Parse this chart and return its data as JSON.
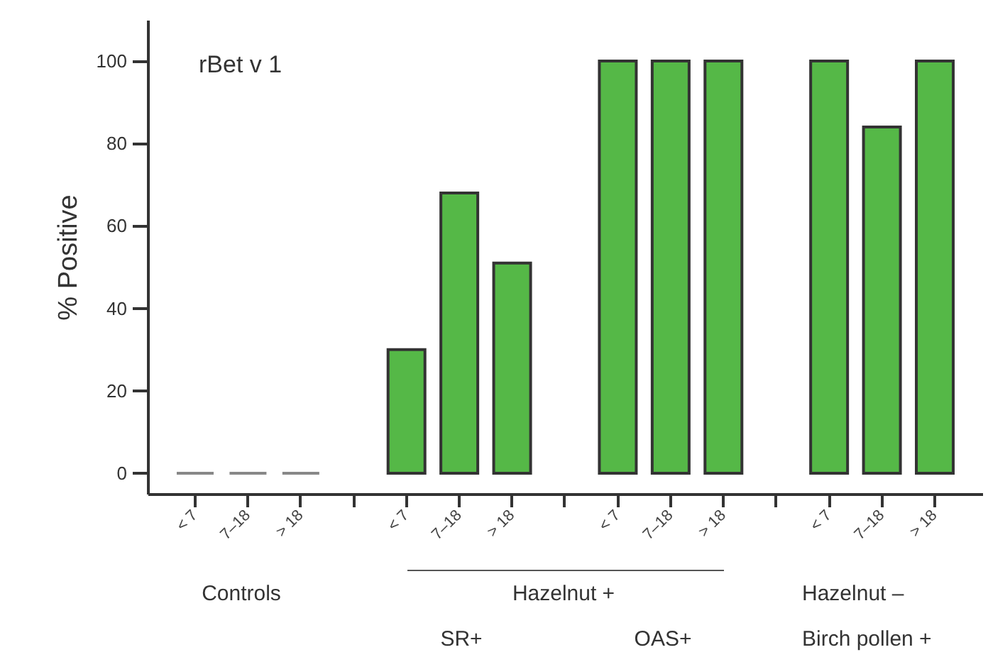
{
  "chart_data": {
    "type": "bar",
    "title": "rBet v 1",
    "ylabel": "% Positive",
    "categories": [
      "< 7",
      "7–18",
      "> 18",
      null,
      "< 7",
      "7–18",
      "> 18",
      null,
      "< 7",
      "7–18",
      "> 18",
      null,
      "< 7",
      "7–18",
      "> 18"
    ],
    "values": [
      0,
      0,
      0,
      null,
      30,
      68,
      51,
      null,
      100,
      100,
      100,
      null,
      100,
      84,
      100
    ],
    "colors": [
      "#888888",
      "#888888",
      "#888888",
      null,
      "#55b847",
      "#55b847",
      "#55b847",
      null,
      "#55b847",
      "#55b847",
      "#55b847",
      null,
      "#55b847",
      "#55b847",
      "#55b847"
    ],
    "ylim": [
      -5,
      110
    ],
    "yticks": [
      0,
      20,
      40,
      60,
      80,
      100
    ],
    "grid": false,
    "annotations": [
      "Controls",
      "Hazelnut +",
      "SR+",
      "OAS+",
      "Hazelnut –",
      "Birch pollen +"
    ]
  }
}
